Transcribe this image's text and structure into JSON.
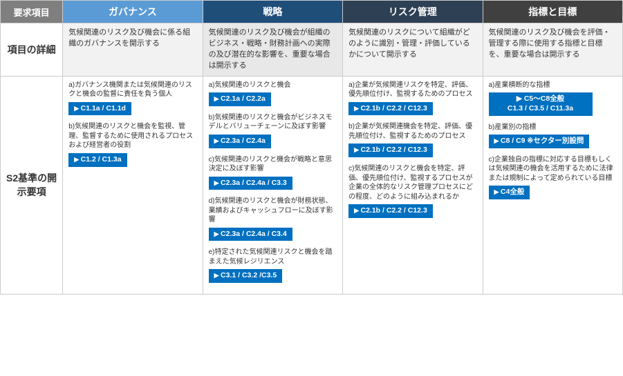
{
  "headers": {
    "corner": "要求項目",
    "col1": "ガバナンス",
    "col2": "戦略",
    "col3": "リスク管理",
    "col4": "指標と目標"
  },
  "row1": {
    "label": "項目の詳細",
    "c1": "気候関連のリスク及び機会に係る組織のガバナンスを開示する",
    "c2": "気候関連のリスク及び機会が組織のビジネス・戦略・財務計画への実際の及び潜在的な影響を、重要な場合は開示する",
    "c3": "気候関連のリスクについて組織がどのように識別・管理・評価しているかについて開示する",
    "c4": "気候関連のリスク及び機会を評価・管理する際に使用する指標と目標を、重要な場合は開示する"
  },
  "row2": {
    "label": "S2基準の開示要項",
    "gov": [
      {
        "text": "a)ガバナンス機関または気候関連のリスクと機会の監督に責任を負う個人",
        "tag": "C1.1a / C1.1d"
      },
      {
        "text": "b)気候関連のリスクと機会を監視、管理、監督するために使用されるプロセスおよび経営者の役割",
        "tag": "C1.2 / C1.3a"
      }
    ],
    "strat": [
      {
        "text": "a)気候関連のリスクと機会",
        "tag": "C2.1a / C2.2a"
      },
      {
        "text": "b)気候関連のリスクと機会がビジネスモデルとバリューチェーンに及ぼす影響",
        "tag": "C2.3a / C2.4a"
      },
      {
        "text": "c)気候関連のリスクと機会が戦略と意思決定に及ぼす影響",
        "tag": "C2.3a / C2.4a / C3.3"
      },
      {
        "text": "d)気候関連のリスクと機会が財務状態、業績およびキャッシュフローに及ぼす影響",
        "tag": "C2.3a / C2.4a / C3.4"
      },
      {
        "text": "e)特定された気候関連リスクと機会を踏まえた気候レジリエンス",
        "tag": "C3.1 / C3.2 /C3.5"
      }
    ],
    "risk": [
      {
        "text": "a)企業が気候関連リスクを特定、評価、優先順位付け、監視するためのプロセス",
        "tag": "C2.1b / C2.2 / C12.3"
      },
      {
        "text": "b)企業が気候関連機会を特定、評価、優先順位付け、監視するためのプロセス",
        "tag": "C2.1b / C2.2 / C12.3"
      },
      {
        "text": "c)気候関連のリスクと機会を特定、評価、優先順位付け、監視するプロセスが企業の全体的なリスク管理プロセスにどの程度、どのように組み込まれるか",
        "tag": "C2.1b / C2.2 / C12.3"
      }
    ],
    "metrics": [
      {
        "text": "a)産業横断的な指標",
        "tag": "C5～C8全般\nC1.3 / C3.5 / C11.3a",
        "multi": true
      },
      {
        "text": "b)産業別の指標",
        "tag": "C8 / C9 ※セクター別設問"
      },
      {
        "text": "c)企業独自の指標に対応する目標もしくは気候関連の機会を活用するために法律または規制によって定められている目標",
        "tag": "C4全般"
      }
    ]
  }
}
